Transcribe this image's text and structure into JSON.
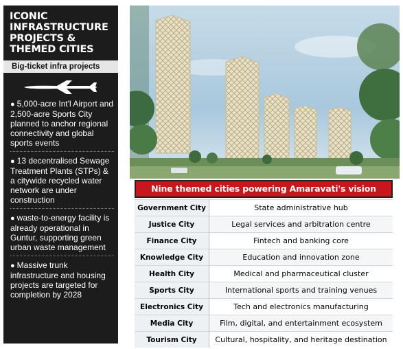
{
  "left_panel": {
    "title": [
      "ICONIC",
      "INFRASTRUCTURE",
      "PROJECTS &",
      "THEMED CITIES"
    ],
    "subheading": "Big-ticket infra projects",
    "icon": "airplane-icon",
    "points": [
      "5,000-acre Int'l Airport and 2,500-acre Sports City planned to anchor regional connectivity and global sports events",
      "13 decentralised Sewage Treatment Plants (STPs) & a citywide recycled water network are under construction",
      "waste-to-energy facility is already operational in Guntur, supporting green urban waste management",
      "Massive trunk infrastructure and housing projects are targeted for completion by 2028"
    ]
  },
  "table": {
    "heading": "Nine themed cities powering Amaravati's vision",
    "rows": [
      {
        "city": "Government City",
        "desc": "State administrative hub"
      },
      {
        "city": "Justice City",
        "desc": "Legal services and arbitration centre"
      },
      {
        "city": "Finance City",
        "desc": "Fintech and banking core"
      },
      {
        "city": "Knowledge City",
        "desc": "Education and innovation zone"
      },
      {
        "city": "Health City",
        "desc": "Medical and pharmaceutical cluster"
      },
      {
        "city": "Sports City",
        "desc": "International sports and training venues"
      },
      {
        "city": "Electronics City",
        "desc": "Tech and electronics manufacturing"
      },
      {
        "city": "Media City",
        "desc": "Film, digital, and entertainment ecosystem"
      },
      {
        "city": "Tourism City",
        "desc": "Cultural, hospitality, and heritage destination"
      }
    ]
  },
  "colors": {
    "panel_bg": "#1c1c1c",
    "heading_red": "#c8161d",
    "sky": "#a9c8dd"
  }
}
